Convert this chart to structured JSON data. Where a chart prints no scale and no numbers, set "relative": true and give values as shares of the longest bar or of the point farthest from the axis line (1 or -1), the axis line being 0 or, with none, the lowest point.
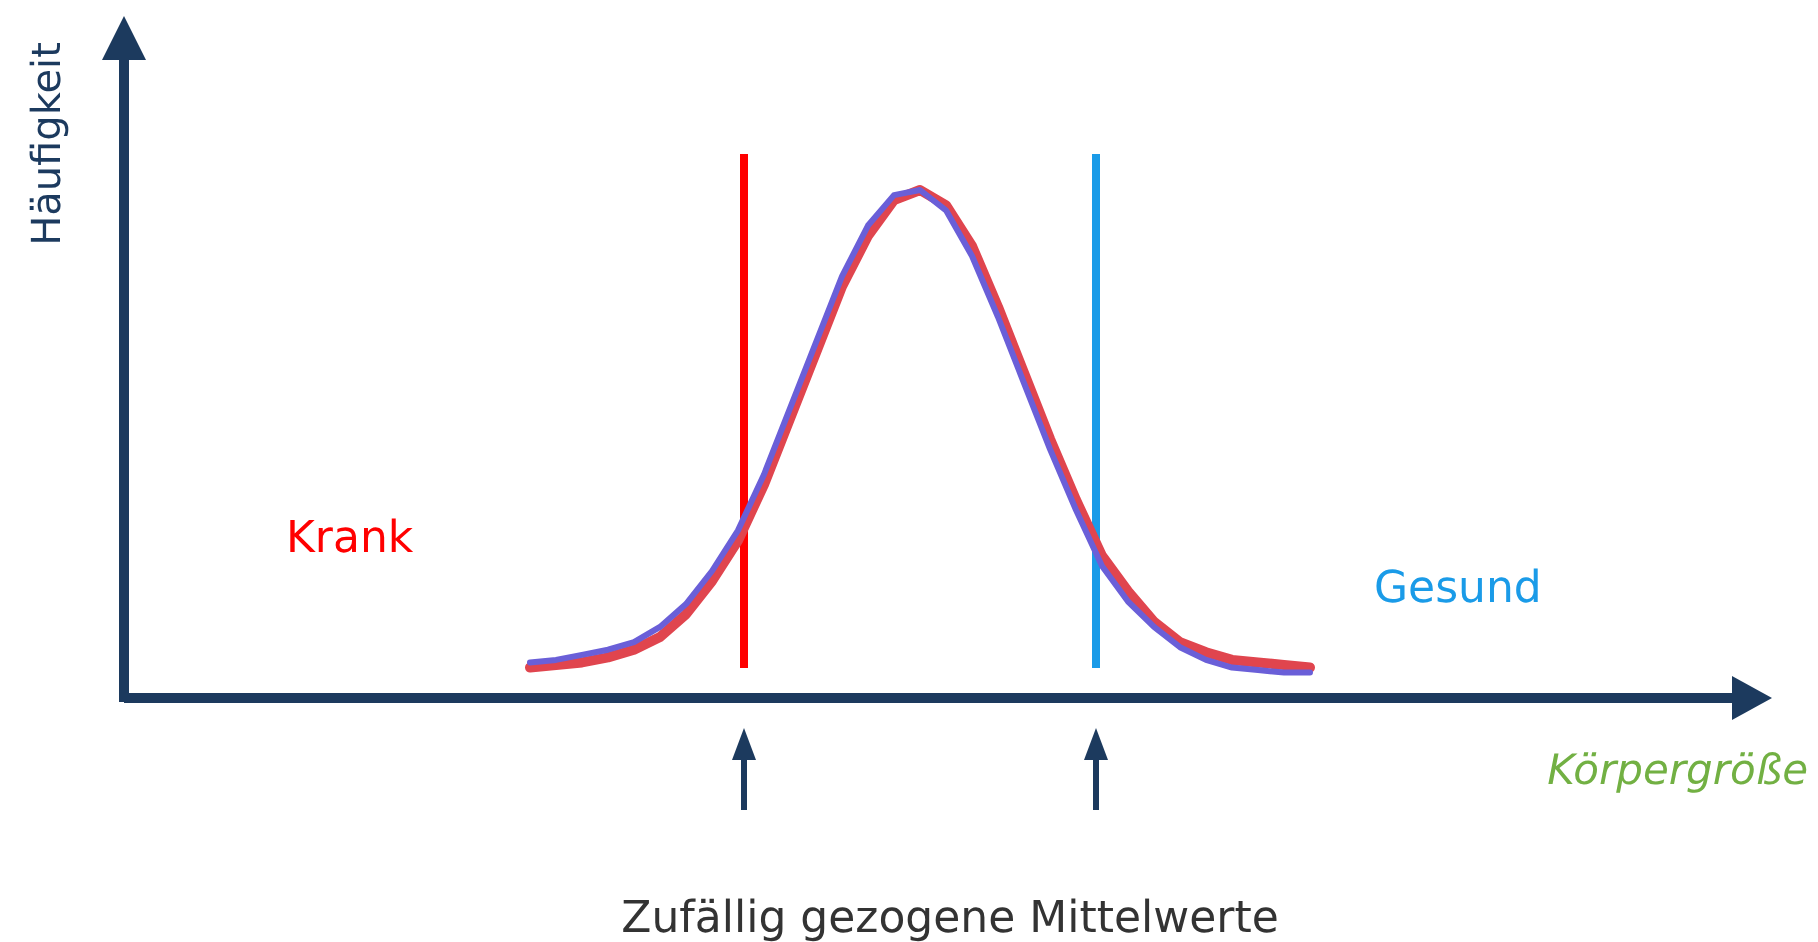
{
  "chart_data": {
    "type": "line",
    "relative": true,
    "categories": [
      null,
      null,
      null,
      null,
      null,
      null,
      null,
      null,
      null,
      null,
      null,
      null,
      null,
      null,
      null,
      null,
      null,
      null,
      null,
      null,
      null,
      null,
      null,
      null,
      null,
      null,
      null,
      null,
      null,
      null,
      null
    ],
    "line_style": "solid",
    "series": [
      {
        "color": "#6a5fd8",
        "values": [
          0.07,
          0.075,
          0.085,
          0.095,
          0.11,
          0.14,
          0.185,
          0.25,
          0.33,
          0.44,
          0.57,
          0.7,
          0.83,
          0.93,
          0.99,
          1,
          0.96,
          0.87,
          0.75,
          0.62,
          0.49,
          0.37,
          0.26,
          0.19,
          0.14,
          0.1,
          0.075,
          0.06,
          0.055,
          0.05,
          0.05
        ]
      },
      {
        "color": "#e0454e",
        "values": [
          0.06,
          0.065,
          0.07,
          0.08,
          0.095,
          0.12,
          0.165,
          0.23,
          0.31,
          0.42,
          0.55,
          0.68,
          0.81,
          0.91,
          0.98,
          1,
          0.97,
          0.89,
          0.77,
          0.64,
          0.51,
          0.39,
          0.28,
          0.21,
          0.15,
          0.11,
          0.09,
          0.075,
          0.07,
          0.065,
          0.06
        ]
      }
    ],
    "annotations": [
      "Häufigkeit",
      "Körpergröße",
      "Krank",
      "Gesund",
      "Zufällig gezogene Mittelwerte"
    ]
  }
}
